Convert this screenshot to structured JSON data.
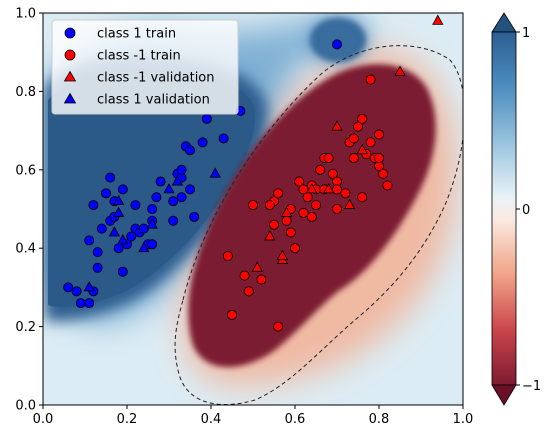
{
  "chart_data": {
    "type": "scatter",
    "title": "",
    "xlabel": "",
    "ylabel": "",
    "xlim": [
      0,
      1
    ],
    "ylim": [
      0,
      1
    ],
    "xticks": [
      "0.0",
      "0.2",
      "0.4",
      "0.6",
      "0.8",
      "1.0"
    ],
    "yticks": [
      "0.0",
      "0.2",
      "0.4",
      "0.6",
      "0.8",
      "1.0"
    ],
    "grid": false,
    "legend_placement": "top-left",
    "colorbar": {
      "ticks": [
        "1",
        "0",
        "−1"
      ],
      "tick_values": [
        1,
        0,
        -1
      ],
      "range": [
        -1,
        1
      ],
      "colormap": "RdBu",
      "extend": "both"
    },
    "decision_boundary": "dashed black contour at 0",
    "series": [
      {
        "name": "class 1 train",
        "marker": "circle",
        "color": "#0000ff",
        "points": [
          [
            0.06,
            0.3
          ],
          [
            0.08,
            0.29
          ],
          [
            0.09,
            0.26
          ],
          [
            0.11,
            0.26
          ],
          [
            0.12,
            0.29
          ],
          [
            0.11,
            0.42
          ],
          [
            0.13,
            0.35
          ],
          [
            0.13,
            0.39
          ],
          [
            0.14,
            0.45
          ],
          [
            0.16,
            0.47
          ],
          [
            0.17,
            0.48
          ],
          [
            0.15,
            0.54
          ],
          [
            0.17,
            0.52
          ],
          [
            0.19,
            0.55
          ],
          [
            0.16,
            0.58
          ],
          [
            0.19,
            0.34
          ],
          [
            0.18,
            0.4
          ],
          [
            0.2,
            0.41
          ],
          [
            0.21,
            0.43
          ],
          [
            0.22,
            0.45
          ],
          [
            0.22,
            0.51
          ],
          [
            0.23,
            0.44
          ],
          [
            0.24,
            0.45
          ],
          [
            0.25,
            0.41
          ],
          [
            0.26,
            0.41
          ],
          [
            0.26,
            0.47
          ],
          [
            0.26,
            0.5
          ],
          [
            0.27,
            0.53
          ],
          [
            0.28,
            0.57
          ],
          [
            0.31,
            0.47
          ],
          [
            0.31,
            0.52
          ],
          [
            0.32,
            0.59
          ],
          [
            0.33,
            0.58
          ],
          [
            0.33,
            0.53
          ],
          [
            0.33,
            0.6
          ],
          [
            0.35,
            0.55
          ],
          [
            0.36,
            0.48
          ],
          [
            0.34,
            0.66
          ],
          [
            0.35,
            0.65
          ],
          [
            0.38,
            0.67
          ],
          [
            0.39,
            0.73
          ],
          [
            0.43,
            0.68
          ],
          [
            0.47,
            0.75
          ],
          [
            0.7,
            0.92
          ],
          [
            0.12,
            0.51
          ]
        ]
      },
      {
        "name": "class -1 train",
        "marker": "circle",
        "color": "#ff0000",
        "points": [
          [
            0.44,
            0.38
          ],
          [
            0.45,
            0.23
          ],
          [
            0.48,
            0.33
          ],
          [
            0.49,
            0.29
          ],
          [
            0.52,
            0.32
          ],
          [
            0.55,
            0.52
          ],
          [
            0.56,
            0.54
          ],
          [
            0.56,
            0.2
          ],
          [
            0.58,
            0.47
          ],
          [
            0.59,
            0.44
          ],
          [
            0.59,
            0.5
          ],
          [
            0.6,
            0.4
          ],
          [
            0.61,
            0.57
          ],
          [
            0.62,
            0.55
          ],
          [
            0.62,
            0.49
          ],
          [
            0.63,
            0.53
          ],
          [
            0.64,
            0.48
          ],
          [
            0.64,
            0.56
          ],
          [
            0.65,
            0.55
          ],
          [
            0.65,
            0.51
          ],
          [
            0.66,
            0.6
          ],
          [
            0.67,
            0.55
          ],
          [
            0.67,
            0.63
          ],
          [
            0.68,
            0.63
          ],
          [
            0.69,
            0.59
          ],
          [
            0.7,
            0.57
          ],
          [
            0.7,
            0.5
          ],
          [
            0.7,
            0.55
          ],
          [
            0.72,
            0.54
          ],
          [
            0.73,
            0.67
          ],
          [
            0.74,
            0.68
          ],
          [
            0.74,
            0.63
          ],
          [
            0.75,
            0.71
          ],
          [
            0.76,
            0.53
          ],
          [
            0.76,
            0.73
          ],
          [
            0.77,
            0.64
          ],
          [
            0.78,
            0.67
          ],
          [
            0.79,
            0.63
          ],
          [
            0.8,
            0.69
          ],
          [
            0.8,
            0.61
          ],
          [
            0.8,
            0.63
          ],
          [
            0.81,
            0.59
          ],
          [
            0.82,
            0.56
          ],
          [
            0.78,
            0.83
          ],
          [
            0.54,
            0.51
          ],
          [
            0.5,
            0.51
          ],
          [
            0.55,
            0.46
          ]
        ]
      },
      {
        "name": "class -1 validation",
        "marker": "triangle-up",
        "color": "#ff0000",
        "points": [
          [
            0.51,
            0.35
          ],
          [
            0.54,
            0.43
          ],
          [
            0.57,
            0.37
          ],
          [
            0.58,
            0.49
          ],
          [
            0.64,
            0.55
          ],
          [
            0.7,
            0.71
          ],
          [
            0.73,
            0.51
          ],
          [
            0.76,
            0.65
          ],
          [
            0.85,
            0.85
          ],
          [
            0.94,
            0.98
          ],
          [
            0.57,
            0.38
          ],
          [
            0.68,
            0.55
          ]
        ]
      },
      {
        "name": "class 1 validation",
        "marker": "triangle-up",
        "color": "#0000ff",
        "points": [
          [
            0.11,
            0.3
          ],
          [
            0.17,
            0.44
          ],
          [
            0.18,
            0.49
          ],
          [
            0.19,
            0.42
          ],
          [
            0.24,
            0.4
          ],
          [
            0.26,
            0.46
          ],
          [
            0.3,
            0.55
          ],
          [
            0.32,
            0.57
          ],
          [
            0.41,
            0.59
          ],
          [
            0.18,
            0.52
          ]
        ]
      }
    ]
  }
}
